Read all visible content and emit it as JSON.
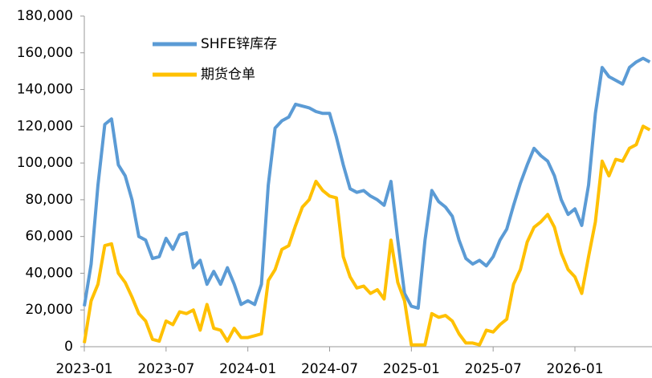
{
  "chart_data": {
    "type": "line",
    "categories": [
      "2023-01",
      null,
      null,
      null,
      null,
      null,
      null,
      null,
      null,
      null,
      null,
      null,
      "2023-07",
      null,
      null,
      null,
      null,
      null,
      null,
      null,
      null,
      null,
      null,
      null,
      "2024-01",
      null,
      null,
      null,
      null,
      null,
      null,
      null,
      null,
      null,
      null,
      null,
      "2024-07",
      null,
      null,
      null,
      null,
      null,
      null,
      null,
      null,
      null,
      null,
      null,
      "2025-01",
      null,
      null,
      null,
      null,
      null,
      null,
      null,
      null,
      null,
      null,
      null,
      "2025-07",
      null,
      null,
      null,
      null,
      null,
      null,
      null,
      null,
      null,
      null,
      null,
      "2026-01",
      null,
      null,
      null,
      null,
      null,
      null,
      null,
      null,
      null,
      null,
      null
    ],
    "series": [
      {
        "name": "SHFE锌库存",
        "color": "#5b9bd5",
        "values": [
          22000,
          45000,
          88000,
          121000,
          124000,
          99000,
          93000,
          80000,
          60000,
          58000,
          48000,
          49000,
          59000,
          53000,
          61000,
          62000,
          43000,
          47000,
          34000,
          41000,
          34000,
          43000,
          34000,
          23000,
          25000,
          23000,
          34000,
          88000,
          119000,
          123000,
          125000,
          132000,
          131000,
          130000,
          128000,
          127000,
          127000,
          114000,
          99000,
          86000,
          84000,
          85000,
          82000,
          80000,
          77000,
          90000,
          58000,
          29000,
          22000,
          21000,
          58000,
          85000,
          79000,
          76000,
          71000,
          58000,
          48000,
          45000,
          47000,
          44000,
          49000,
          58000,
          64000,
          77000,
          89000,
          99000,
          108000,
          104000,
          101000,
          93000,
          80000,
          72000,
          75000,
          66000,
          88000,
          127000,
          152000,
          147000,
          145000,
          143000,
          152000,
          155000,
          157000,
          155000
        ]
      },
      {
        "name": "期货仓单",
        "color": "#ffc000",
        "values": [
          2000,
          25000,
          34000,
          55000,
          56000,
          40000,
          35000,
          27000,
          18000,
          14000,
          4000,
          3000,
          14000,
          12000,
          19000,
          18000,
          20000,
          9000,
          23000,
          10000,
          9000,
          3000,
          10000,
          5000,
          5000,
          6000,
          7000,
          36000,
          42000,
          53000,
          55000,
          66000,
          76000,
          80000,
          90000,
          85000,
          82000,
          81000,
          49000,
          38000,
          32000,
          33000,
          29000,
          31000,
          26000,
          58000,
          35000,
          25000,
          1000,
          1000,
          1000,
          18000,
          16000,
          17000,
          14000,
          7000,
          2000,
          2000,
          1000,
          9000,
          8000,
          12000,
          15000,
          34000,
          42000,
          57000,
          65000,
          68000,
          72000,
          65000,
          51000,
          42000,
          38000,
          29000,
          49000,
          68000,
          101000,
          93000,
          102000,
          101000,
          108000,
          110000,
          120000,
          118000
        ]
      }
    ],
    "ylim": [
      0,
      180000
    ],
    "yticks": [
      0,
      {
        "value": 20000,
        "label": "20,000"
      },
      {
        "value": 40000,
        "label": "40,000"
      },
      {
        "value": 60000,
        "label": "60,000"
      },
      {
        "value": 80000,
        "label": "80,000"
      },
      {
        "value": 100000,
        "label": "100,000"
      },
      {
        "value": 120000,
        "label": "120,000"
      },
      {
        "value": 140000,
        "label": "140,000"
      },
      {
        "value": 160000,
        "label": "160,000"
      },
      {
        "value": 180000,
        "label": "180,000"
      }
    ],
    "grid": false,
    "legend": "upper left"
  }
}
